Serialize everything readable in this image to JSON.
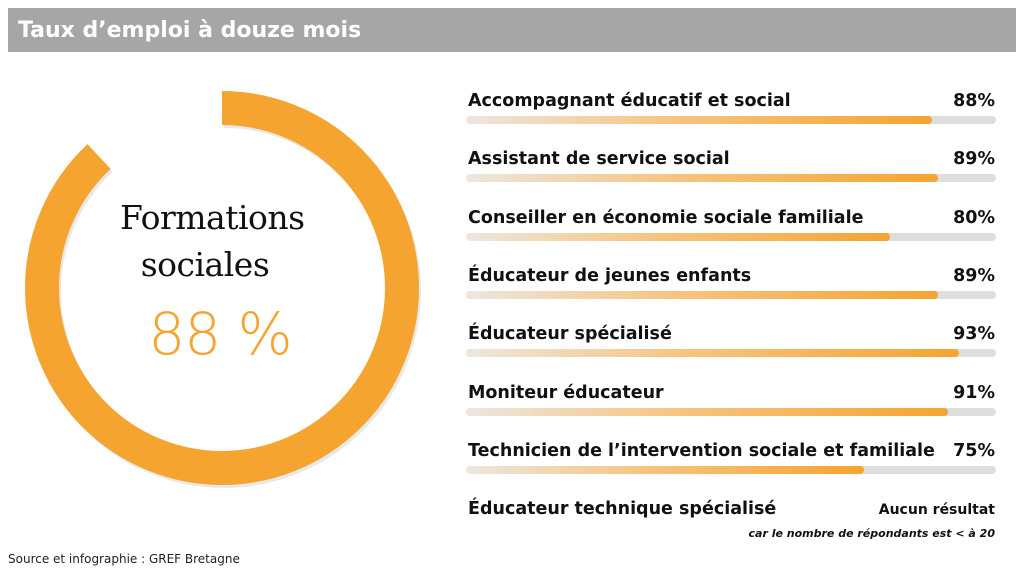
{
  "title": "Taux d’emploi à douze mois",
  "donut": {
    "label_line1": "Formations",
    "label_line2": "sociales",
    "value_text": "88 %"
  },
  "chart_data": {
    "type": "bar",
    "orientation": "horizontal",
    "categories": [
      "Accompagnant éducatif et social",
      "Assistant de service social",
      "Conseiller en économie sociale familiale",
      "Éducateur de jeunes enfants",
      "Éducateur spécialisé",
      "Moniteur éducateur",
      "Technicien de l’intervention sociale et familiale",
      "Éducateur technique spécialisé"
    ],
    "values": [
      88,
      89,
      80,
      89,
      93,
      91,
      75,
      null
    ],
    "value_labels": [
      "88%",
      "89%",
      "80%",
      "89%",
      "93%",
      "91%",
      "75%",
      ""
    ],
    "xlim": [
      0,
      100
    ],
    "summary": {
      "value": 88
    }
  },
  "no_result": {
    "label": "Aucun résultat",
    "note": "car le nombre de répondants est < à 20"
  },
  "source": "Source et infographie : GREF Bretagne",
  "colors": {
    "accent": "#f5a430",
    "track": "#dedede",
    "title_bar": "#a6a6a6"
  }
}
